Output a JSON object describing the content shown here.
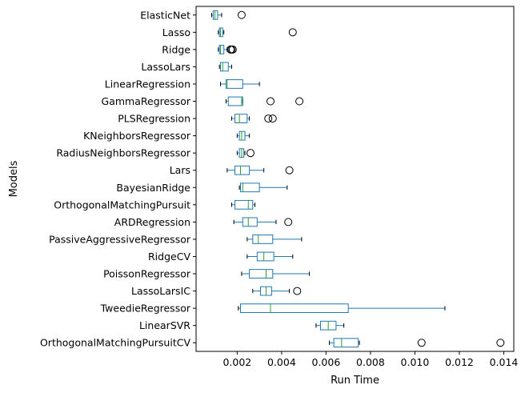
{
  "chart_data": {
    "type": "boxplot",
    "orientation": "horizontal",
    "xlabel": "Run Time",
    "ylabel": "Models",
    "xlim": [
      0.00015,
      0.01445
    ],
    "xticks": [
      0.002,
      0.004,
      0.006,
      0.008,
      0.01,
      0.012,
      0.014
    ],
    "xtick_labels": [
      "0.002",
      "0.004",
      "0.006",
      "0.008",
      "0.010",
      "0.012",
      "0.014"
    ],
    "grid": false,
    "colors": {
      "box": "#1f77b4",
      "median": "#2ca02c",
      "whisker": "#1f77b4",
      "flier": "#000000"
    },
    "categories": [
      "ElasticNet",
      "Lasso",
      "Ridge",
      "LassoLars",
      "LinearRegression",
      "GammaRegressor",
      "PLSRegression",
      "KNeighborsRegressor",
      "RadiusNeighborsRegressor",
      "Lars",
      "BayesianRidge",
      "OrthogonalMatchingPursuit",
      "ARDRegression",
      "PassiveAggressiveRegressor",
      "RidgeCV",
      "PoissonRegressor",
      "LassoLarsIC",
      "TweedieRegressor",
      "LinearSVR",
      "OrthogonalMatchingPursuitCV"
    ],
    "boxes": [
      {
        "whislo": 0.00085,
        "q1": 0.00092,
        "med": 0.001,
        "q3": 0.00112,
        "whishi": 0.0013,
        "fliers": [
          0.0022
        ]
      },
      {
        "whislo": 0.00115,
        "q1": 0.0012,
        "med": 0.00125,
        "q3": 0.00135,
        "whishi": 0.0014,
        "fliers": [
          0.0045
        ]
      },
      {
        "whislo": 0.00115,
        "q1": 0.0012,
        "med": 0.00125,
        "q3": 0.0014,
        "whishi": 0.00155,
        "fliers": [
          0.0017,
          0.00175,
          0.0018
        ]
      },
      {
        "whislo": 0.0012,
        "q1": 0.00125,
        "med": 0.00135,
        "q3": 0.0016,
        "whishi": 0.00175,
        "fliers": []
      },
      {
        "whislo": 0.00125,
        "q1": 0.0015,
        "med": 0.00155,
        "q3": 0.00225,
        "whishi": 0.003,
        "fliers": []
      },
      {
        "whislo": 0.0015,
        "q1": 0.0016,
        "med": 0.0022,
        "q3": 0.00225,
        "whishi": 0.00225,
        "fliers": [
          0.0035,
          0.0048
        ]
      },
      {
        "whislo": 0.00175,
        "q1": 0.0019,
        "med": 0.0021,
        "q3": 0.00245,
        "whishi": 0.00255,
        "fliers": [
          0.0034,
          0.0036
        ]
      },
      {
        "whislo": 0.002,
        "q1": 0.0021,
        "med": 0.0022,
        "q3": 0.00235,
        "whishi": 0.00255,
        "fliers": []
      },
      {
        "whislo": 0.002,
        "q1": 0.0021,
        "med": 0.0022,
        "q3": 0.0023,
        "whishi": 0.00235,
        "fliers": [
          0.0026
        ]
      },
      {
        "whislo": 0.00155,
        "q1": 0.0019,
        "med": 0.00215,
        "q3": 0.00255,
        "whishi": 0.0032,
        "fliers": [
          0.00435
        ]
      },
      {
        "whislo": 0.0021,
        "q1": 0.00215,
        "med": 0.00225,
        "q3": 0.003,
        "whishi": 0.00425,
        "fliers": []
      },
      {
        "whislo": 0.00175,
        "q1": 0.0019,
        "med": 0.0025,
        "q3": 0.0027,
        "whishi": 0.0028,
        "fliers": []
      },
      {
        "whislo": 0.00185,
        "q1": 0.00225,
        "med": 0.0025,
        "q3": 0.0029,
        "whishi": 0.00375,
        "fliers": [
          0.0043
        ]
      },
      {
        "whislo": 0.00245,
        "q1": 0.0027,
        "med": 0.00295,
        "q3": 0.0036,
        "whishi": 0.0049,
        "fliers": []
      },
      {
        "whislo": 0.00245,
        "q1": 0.0029,
        "med": 0.0032,
        "q3": 0.00365,
        "whishi": 0.0045,
        "fliers": []
      },
      {
        "whislo": 0.0022,
        "q1": 0.00255,
        "med": 0.0033,
        "q3": 0.0036,
        "whishi": 0.00525,
        "fliers": []
      },
      {
        "whislo": 0.0027,
        "q1": 0.00305,
        "med": 0.0033,
        "q3": 0.00355,
        "whishi": 0.00435,
        "fliers": [
          0.0047
        ]
      },
      {
        "whislo": 0.00205,
        "q1": 0.00215,
        "med": 0.0035,
        "q3": 0.007,
        "whishi": 0.01135,
        "fliers": []
      },
      {
        "whislo": 0.00555,
        "q1": 0.00575,
        "med": 0.0061,
        "q3": 0.00645,
        "whishi": 0.0068,
        "fliers": []
      },
      {
        "whislo": 0.00615,
        "q1": 0.00635,
        "med": 0.0067,
        "q3": 0.00745,
        "whishi": 0.0075,
        "fliers": [
          0.0103,
          0.01385
        ]
      }
    ]
  }
}
